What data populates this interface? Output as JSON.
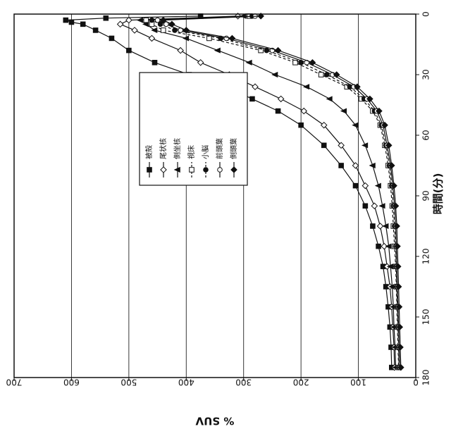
{
  "chart_data": {
    "type": "line",
    "orientation": "rotated-90-clockwise",
    "xlabel": "時間(分)",
    "ylabel": "% SUV",
    "xlim": [
      0,
      180
    ],
    "ylim": [
      0,
      700
    ],
    "x_ticks": [
      0,
      30,
      60,
      90,
      120,
      150,
      180
    ],
    "y_ticks": [
      0,
      100,
      200,
      300,
      400,
      500,
      600,
      700
    ],
    "grid": "horizontal lines at each % SUV tick",
    "legend_position": "inside plot, upper-middle",
    "series": [
      {
        "name": "被殻",
        "marker": "filled-square",
        "line": "solid",
        "points": [
          [
            1,
            375
          ],
          [
            2,
            540
          ],
          [
            3,
            610
          ],
          [
            4,
            600
          ],
          [
            5,
            580
          ],
          [
            8,
            558
          ],
          [
            12,
            530
          ],
          [
            18,
            500
          ],
          [
            24,
            455
          ],
          [
            30,
            395
          ],
          [
            36,
            330
          ],
          [
            42,
            285
          ],
          [
            48,
            240
          ],
          [
            55,
            200
          ],
          [
            65,
            160
          ],
          [
            75,
            130
          ],
          [
            85,
            105
          ],
          [
            95,
            88
          ],
          [
            105,
            75
          ],
          [
            115,
            65
          ],
          [
            125,
            57
          ],
          [
            135,
            52
          ],
          [
            145,
            48
          ],
          [
            155,
            45
          ],
          [
            165,
            43
          ],
          [
            175,
            42
          ]
        ]
      },
      {
        "name": "尾状核",
        "marker": "open-diamond",
        "line": "solid",
        "points": [
          [
            1,
            310
          ],
          [
            3,
            500
          ],
          [
            5,
            515
          ],
          [
            8,
            490
          ],
          [
            12,
            460
          ],
          [
            18,
            410
          ],
          [
            24,
            375
          ],
          [
            30,
            325
          ],
          [
            36,
            280
          ],
          [
            42,
            235
          ],
          [
            48,
            195
          ],
          [
            55,
            160
          ],
          [
            65,
            130
          ],
          [
            75,
            105
          ],
          [
            85,
            88
          ],
          [
            95,
            72
          ],
          [
            105,
            62
          ],
          [
            115,
            55
          ],
          [
            125,
            50
          ],
          [
            135,
            45
          ],
          [
            145,
            42
          ],
          [
            155,
            40
          ],
          [
            165,
            38
          ],
          [
            175,
            37
          ]
        ]
      },
      {
        "name": "側坐核",
        "marker": "filled-triangle",
        "line": "solid",
        "points": [
          [
            1,
            300
          ],
          [
            3,
            480
          ],
          [
            5,
            470
          ],
          [
            8,
            455
          ],
          [
            12,
            400
          ],
          [
            18,
            345
          ],
          [
            24,
            290
          ],
          [
            30,
            245
          ],
          [
            36,
            190
          ],
          [
            42,
            150
          ],
          [
            48,
            125
          ],
          [
            55,
            105
          ],
          [
            65,
            88
          ],
          [
            75,
            75
          ],
          [
            85,
            65
          ],
          [
            95,
            58
          ],
          [
            105,
            52
          ],
          [
            115,
            47
          ],
          [
            125,
            44
          ],
          [
            135,
            41
          ],
          [
            145,
            39
          ],
          [
            155,
            38
          ],
          [
            165,
            36
          ],
          [
            175,
            35
          ]
        ]
      },
      {
        "name": "視床",
        "marker": "open-square",
        "line": "dashed",
        "points": [
          [
            1,
            290
          ],
          [
            3,
            470
          ],
          [
            5,
            460
          ],
          [
            8,
            440
          ],
          [
            12,
            360
          ],
          [
            18,
            270
          ],
          [
            24,
            210
          ],
          [
            30,
            165
          ],
          [
            36,
            120
          ],
          [
            42,
            95
          ],
          [
            48,
            75
          ],
          [
            55,
            62
          ],
          [
            65,
            54
          ],
          [
            75,
            48
          ],
          [
            85,
            44
          ],
          [
            95,
            41
          ],
          [
            105,
            39
          ],
          [
            115,
            37
          ],
          [
            125,
            35
          ],
          [
            135,
            34
          ],
          [
            145,
            33
          ],
          [
            155,
            32
          ],
          [
            165,
            31
          ],
          [
            175,
            30
          ]
        ]
      },
      {
        "name": "小脳",
        "marker": "filled-circle",
        "line": "dashed",
        "points": [
          [
            1,
            285
          ],
          [
            3,
            460
          ],
          [
            5,
            445
          ],
          [
            8,
            420
          ],
          [
            12,
            340
          ],
          [
            18,
            260
          ],
          [
            24,
            200
          ],
          [
            30,
            155
          ],
          [
            36,
            115
          ],
          [
            42,
            90
          ],
          [
            48,
            72
          ],
          [
            55,
            60
          ],
          [
            65,
            52
          ],
          [
            75,
            46
          ],
          [
            85,
            42
          ],
          [
            95,
            39
          ],
          [
            105,
            37
          ],
          [
            115,
            35
          ],
          [
            125,
            34
          ],
          [
            135,
            33
          ],
          [
            145,
            32
          ],
          [
            155,
            31
          ],
          [
            165,
            30
          ],
          [
            175,
            29
          ]
        ]
      },
      {
        "name": "前頭葉",
        "marker": "open-circle",
        "line": "solid",
        "points": [
          [
            1,
            280
          ],
          [
            3,
            450
          ],
          [
            5,
            435
          ],
          [
            8,
            410
          ],
          [
            12,
            330
          ],
          [
            18,
            250
          ],
          [
            24,
            190
          ],
          [
            30,
            145
          ],
          [
            36,
            108
          ],
          [
            42,
            85
          ],
          [
            48,
            68
          ],
          [
            55,
            57
          ],
          [
            65,
            50
          ],
          [
            75,
            44
          ],
          [
            85,
            40
          ],
          [
            95,
            37
          ],
          [
            105,
            35
          ],
          [
            115,
            34
          ],
          [
            125,
            33
          ],
          [
            135,
            32
          ],
          [
            145,
            31
          ],
          [
            155,
            30
          ],
          [
            165,
            29
          ],
          [
            175,
            28
          ]
        ]
      },
      {
        "name": "側頭葉",
        "marker": "filled-diamond",
        "line": "solid",
        "points": [
          [
            1,
            270
          ],
          [
            3,
            440
          ],
          [
            5,
            425
          ],
          [
            8,
            400
          ],
          [
            12,
            320
          ],
          [
            18,
            240
          ],
          [
            24,
            180
          ],
          [
            30,
            138
          ],
          [
            36,
            102
          ],
          [
            42,
            80
          ],
          [
            48,
            64
          ],
          [
            55,
            54
          ],
          [
            65,
            47
          ],
          [
            75,
            42
          ],
          [
            85,
            38
          ],
          [
            95,
            35
          ],
          [
            105,
            33
          ],
          [
            115,
            32
          ],
          [
            125,
            31
          ],
          [
            135,
            30
          ],
          [
            145,
            29
          ],
          [
            155,
            28
          ],
          [
            165,
            27
          ],
          [
            175,
            26
          ]
        ]
      }
    ]
  }
}
